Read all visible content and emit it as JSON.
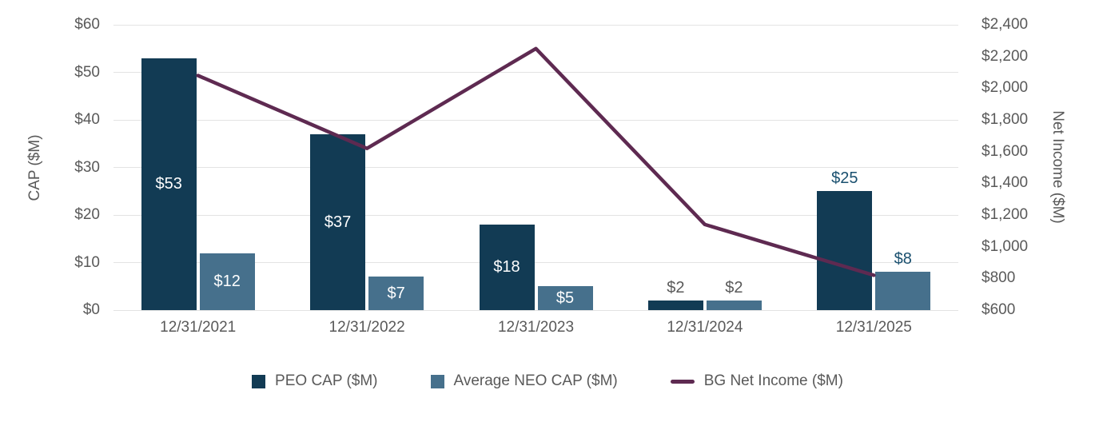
{
  "chart_data": {
    "type": "combo-bar-line",
    "title": "",
    "categories": [
      "12/31/2021",
      "12/31/2022",
      "12/31/2023",
      "12/31/2024",
      "12/31/2025"
    ],
    "series": [
      {
        "name": "PEO CAP ($M)",
        "type": "bar",
        "axis": "left",
        "color": "#123b54",
        "values": [
          53,
          37,
          18,
          2,
          25
        ],
        "labels": [
          "$53",
          "$37",
          "$18",
          "$2",
          "$25"
        ],
        "label_placement": [
          "inside",
          "inside",
          "inside",
          "above",
          "above"
        ],
        "label_colors": [
          "#ffffff",
          "#ffffff",
          "#ffffff",
          "#595959",
          "#1a506f"
        ]
      },
      {
        "name": "Average NEO CAP ($M)",
        "type": "bar",
        "axis": "left",
        "color": "#46708c",
        "values": [
          12,
          7,
          5,
          2,
          8
        ],
        "labels": [
          "$12",
          "$7",
          "$5",
          "$2",
          "$8"
        ],
        "label_placement": [
          "inside",
          "inside",
          "inside",
          "above",
          "above"
        ],
        "label_colors": [
          "#ffffff",
          "#ffffff",
          "#ffffff",
          "#595959",
          "#1a506f"
        ]
      },
      {
        "name": "BG Net Income ($M)",
        "type": "line",
        "axis": "right",
        "color": "#5e2a51",
        "values": [
          2080,
          1620,
          2250,
          1140,
          820
        ]
      }
    ],
    "left_axis": {
      "label": "CAP ($M)",
      "min": 0,
      "max": 60,
      "step": 10,
      "ticks": [
        "$60",
        "$50",
        "$40",
        "$30",
        "$20",
        "$10",
        "$0"
      ]
    },
    "right_axis": {
      "label": "Net Income ($M)",
      "min": 600,
      "max": 2400,
      "step": 200,
      "ticks": [
        "$2,400",
        "$2,200",
        "$2,000",
        "$1,800",
        "$1,600",
        "$1,400",
        "$1,200",
        "$1,000",
        "$800",
        "$600"
      ]
    },
    "grid": "horizontal",
    "legend_position": "bottom",
    "colors": {
      "axis_text": "#595959",
      "gridline": "#e3e3e3",
      "background": "#ffffff"
    }
  }
}
